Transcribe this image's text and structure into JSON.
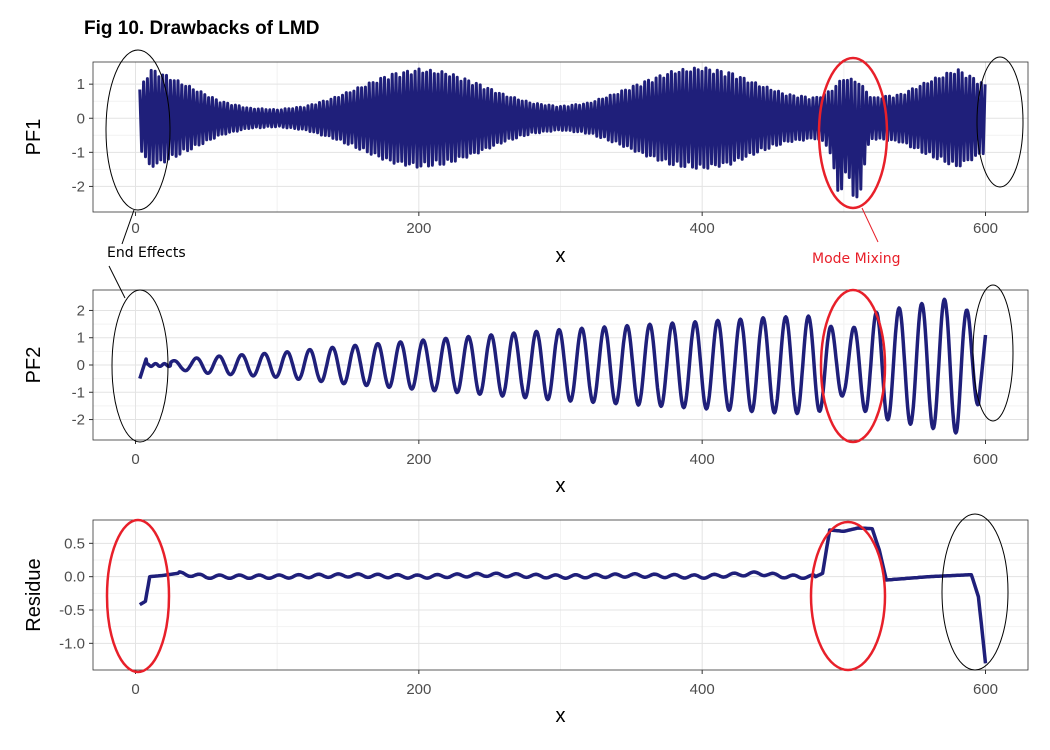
{
  "figure_title": "Fig 10. Drawbacks of LMD",
  "annotations": {
    "end_effects": "End Effects",
    "mode_mixing": "Mode Mixing"
  },
  "colors": {
    "line": "#1f1f7a",
    "red_marker": "#e8202a",
    "black_marker": "#000000",
    "grid_major": "#e3e3e3",
    "grid_minor": "#f2f2f2"
  },
  "chart_data": [
    {
      "type": "line",
      "panel": "PF1",
      "xlabel": "x",
      "ylabel": "PF1",
      "xlim": [
        -30,
        630
      ],
      "ylim": [
        -2.75,
        1.65
      ],
      "x_ticks": [
        0,
        200,
        400,
        600
      ],
      "y_ticks": [
        1,
        0,
        -1,
        -2
      ],
      "grid": true,
      "x": [
        0,
        10,
        20,
        40,
        60,
        80,
        100,
        120,
        140,
        160,
        180,
        200,
        220,
        240,
        260,
        280,
        300,
        320,
        340,
        360,
        380,
        400,
        420,
        440,
        460,
        480,
        490,
        500,
        510,
        520,
        540,
        560,
        580,
        600
      ],
      "y_envelope": [
        0.6,
        1.45,
        1.3,
        0.9,
        0.5,
        0.3,
        0.25,
        0.35,
        0.6,
        0.95,
        1.3,
        1.45,
        1.35,
        1.05,
        0.7,
        0.45,
        0.35,
        0.45,
        0.75,
        1.1,
        1.4,
        1.5,
        1.35,
        1.0,
        0.7,
        0.6,
        0.8,
        1.2,
        1.1,
        0.6,
        0.7,
        1.1,
        1.45,
        1.0
      ],
      "y_mixing_dips": [
        [
          497,
          -2.2
        ],
        [
          509,
          -2.6
        ]
      ],
      "y_max": 1.5,
      "y_min": -2.6
    },
    {
      "type": "line",
      "panel": "PF2",
      "xlabel": "x",
      "ylabel": "PF2",
      "xlim": [
        -30,
        630
      ],
      "ylim": [
        -2.75,
        2.75
      ],
      "x_ticks": [
        0,
        200,
        400,
        600
      ],
      "y_ticks": [
        2,
        1,
        0,
        -1,
        -2
      ],
      "grid": true,
      "x": [
        3,
        10,
        50,
        100,
        150,
        200,
        250,
        300,
        350,
        400,
        450,
        480,
        500,
        520,
        550,
        580,
        600
      ],
      "amplitude": [
        0.25,
        0.05,
        0.3,
        0.45,
        0.7,
        0.9,
        1.1,
        1.3,
        1.45,
        1.6,
        1.75,
        1.8,
        1.1,
        1.9,
        2.2,
        2.5,
        1.1
      ],
      "oscillation_period": 16,
      "y_start": -0.5,
      "y_end": 1.1
    },
    {
      "type": "line",
      "panel": "Residue",
      "xlabel": "x",
      "ylabel": "Residue",
      "xlim": [
        -30,
        630
      ],
      "ylim": [
        -1.4,
        0.85
      ],
      "x_ticks": [
        0,
        200,
        400,
        600
      ],
      "y_ticks": [
        0.5,
        0.0,
        -0.5,
        -1.0
      ],
      "y_tick_labels": [
        "0.5",
        "0.0",
        "-0.5",
        "-1.0"
      ],
      "grid": true,
      "x": [
        3,
        7,
        10,
        20,
        30,
        50,
        100,
        150,
        200,
        250,
        300,
        350,
        400,
        440,
        460,
        480,
        485,
        490,
        500,
        510,
        520,
        525,
        530,
        560,
        590,
        595,
        598,
        600
      ],
      "y": [
        -0.42,
        -0.37,
        0.0,
        0.02,
        0.05,
        0.0,
        0.0,
        0.02,
        0.0,
        0.03,
        0.0,
        0.02,
        0.0,
        0.05,
        0.0,
        0.0,
        0.05,
        0.7,
        0.68,
        0.73,
        0.72,
        0.4,
        -0.05,
        0.0,
        0.03,
        -0.3,
        -0.9,
        -1.3
      ]
    }
  ]
}
